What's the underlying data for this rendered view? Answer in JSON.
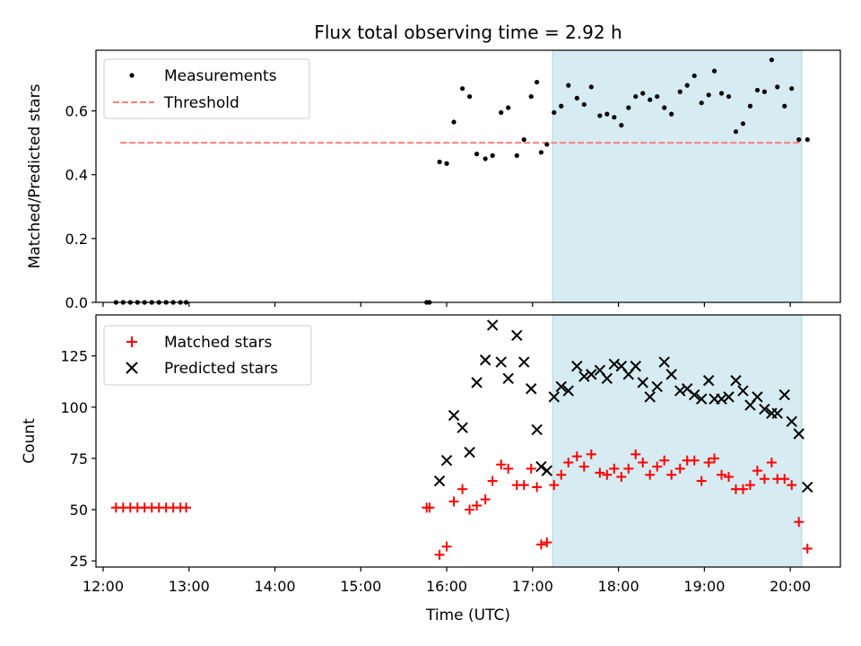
{
  "title": "Flux total observing time = 2.92 h",
  "chart_data": [
    {
      "type": "scatter",
      "ylabel": "Matched/Predicted stars",
      "xlabel": "",
      "xlim": [
        "11:55",
        "20:35"
      ],
      "ylim": [
        0,
        0.79
      ],
      "yticks": [
        0.0,
        0.2,
        0.4,
        0.6
      ],
      "ytick_labels": [
        "0.0",
        "0.2",
        "0.4",
        "0.6"
      ],
      "legend_position": "top-left",
      "shaded_interval": [
        "17:14",
        "20:08"
      ],
      "shaded_color": "#add8e6",
      "threshold": {
        "name": "Threshold",
        "value": 0.5,
        "x_start": "12:12",
        "x_end": "20:08",
        "color": "#ff7f7f"
      },
      "series": [
        {
          "name": "Measurements",
          "color": "#000000",
          "points": [
            [
              "12:09",
              0.0
            ],
            [
              "12:14",
              0.0
            ],
            [
              "12:19",
              0.0
            ],
            [
              "12:24",
              0.0
            ],
            [
              "12:29",
              0.0
            ],
            [
              "12:34",
              0.0
            ],
            [
              "12:39",
              0.0
            ],
            [
              "12:44",
              0.0
            ],
            [
              "12:49",
              0.0
            ],
            [
              "12:54",
              0.0
            ],
            [
              "12:58",
              0.0
            ],
            [
              "15:46",
              0.0
            ],
            [
              "15:48",
              0.0
            ],
            [
              "15:55",
              0.44
            ],
            [
              "16:00",
              0.435
            ],
            [
              "16:05",
              0.565
            ],
            [
              "16:11",
              0.67
            ],
            [
              "16:16",
              0.645
            ],
            [
              "16:21",
              0.465
            ],
            [
              "16:27",
              0.45
            ],
            [
              "16:32",
              0.46
            ],
            [
              "16:38",
              0.595
            ],
            [
              "16:43",
              0.61
            ],
            [
              "16:49",
              0.46
            ],
            [
              "16:54",
              0.51
            ],
            [
              "16:59",
              0.645
            ],
            [
              "17:03",
              0.69
            ],
            [
              "17:06",
              0.47
            ],
            [
              "17:10",
              0.495
            ],
            [
              "17:15",
              0.595
            ],
            [
              "17:20",
              0.615
            ],
            [
              "17:25",
              0.68
            ],
            [
              "17:31",
              0.64
            ],
            [
              "17:36",
              0.62
            ],
            [
              "17:41",
              0.675
            ],
            [
              "17:47",
              0.585
            ],
            [
              "17:52",
              0.59
            ],
            [
              "17:57",
              0.58
            ],
            [
              "18:02",
              0.555
            ],
            [
              "18:07",
              0.61
            ],
            [
              "18:12",
              0.645
            ],
            [
              "18:17",
              0.655
            ],
            [
              "18:22",
              0.635
            ],
            [
              "18:27",
              0.645
            ],
            [
              "18:32",
              0.61
            ],
            [
              "18:37",
              0.59
            ],
            [
              "18:43",
              0.66
            ],
            [
              "18:48",
              0.68
            ],
            [
              "18:53",
              0.71
            ],
            [
              "18:58",
              0.625
            ],
            [
              "19:03",
              0.65
            ],
            [
              "19:07",
              0.725
            ],
            [
              "19:12",
              0.655
            ],
            [
              "19:17",
              0.645
            ],
            [
              "19:22",
              0.535
            ],
            [
              "19:27",
              0.56
            ],
            [
              "19:32",
              0.615
            ],
            [
              "19:37",
              0.665
            ],
            [
              "19:42",
              0.66
            ],
            [
              "19:47",
              0.76
            ],
            [
              "19:51",
              0.675
            ],
            [
              "19:56",
              0.615
            ],
            [
              "20:01",
              0.67
            ],
            [
              "20:06",
              0.51
            ],
            [
              "20:12",
              0.51
            ]
          ]
        }
      ]
    },
    {
      "type": "scatter",
      "xlabel": "Time (UTC)",
      "ylabel": "Count",
      "xlim": [
        "11:55",
        "20:35"
      ],
      "ylim": [
        22,
        145
      ],
      "yticks": [
        25,
        50,
        75,
        100,
        125
      ],
      "ytick_labels": [
        "25",
        "50",
        "75",
        "100",
        "125"
      ],
      "xticks": [
        "12:00",
        "13:00",
        "14:00",
        "15:00",
        "16:00",
        "17:00",
        "18:00",
        "19:00",
        "20:00"
      ],
      "legend_position": "top-left",
      "shaded_interval": [
        "17:14",
        "20:08"
      ],
      "shaded_color": "#add8e6",
      "series": [
        {
          "name": "Matched stars",
          "color": "#ff0000",
          "marker": "plus",
          "points": [
            [
              "12:09",
              51
            ],
            [
              "12:14",
              51
            ],
            [
              "12:19",
              51
            ],
            [
              "12:24",
              51
            ],
            [
              "12:29",
              51
            ],
            [
              "12:34",
              51
            ],
            [
              "12:39",
              51
            ],
            [
              "12:44",
              51
            ],
            [
              "12:49",
              51
            ],
            [
              "12:54",
              51
            ],
            [
              "12:58",
              51
            ],
            [
              "15:46",
              51
            ],
            [
              "15:48",
              51
            ],
            [
              "15:55",
              28
            ],
            [
              "16:00",
              32
            ],
            [
              "16:05",
              54
            ],
            [
              "16:11",
              60
            ],
            [
              "16:16",
              50
            ],
            [
              "16:21",
              52
            ],
            [
              "16:27",
              55
            ],
            [
              "16:32",
              64
            ],
            [
              "16:38",
              72
            ],
            [
              "16:43",
              70
            ],
            [
              "16:49",
              62
            ],
            [
              "16:54",
              62
            ],
            [
              "16:59",
              70
            ],
            [
              "17:03",
              61
            ],
            [
              "17:06",
              33
            ],
            [
              "17:10",
              34
            ],
            [
              "17:15",
              62
            ],
            [
              "17:20",
              67
            ],
            [
              "17:25",
              73
            ],
            [
              "17:31",
              76
            ],
            [
              "17:36",
              71
            ],
            [
              "17:41",
              77
            ],
            [
              "17:47",
              68
            ],
            [
              "17:52",
              67
            ],
            [
              "17:57",
              70
            ],
            [
              "18:02",
              66
            ],
            [
              "18:07",
              70
            ],
            [
              "18:12",
              77
            ],
            [
              "18:17",
              73
            ],
            [
              "18:22",
              67
            ],
            [
              "18:27",
              71
            ],
            [
              "18:32",
              74
            ],
            [
              "18:37",
              67
            ],
            [
              "18:43",
              70
            ],
            [
              "18:48",
              74
            ],
            [
              "18:53",
              74
            ],
            [
              "18:58",
              64
            ],
            [
              "19:03",
              73
            ],
            [
              "19:07",
              75
            ],
            [
              "19:12",
              67
            ],
            [
              "19:17",
              66
            ],
            [
              "19:22",
              60
            ],
            [
              "19:27",
              60
            ],
            [
              "19:32",
              62
            ],
            [
              "19:37",
              69
            ],
            [
              "19:42",
              65
            ],
            [
              "19:47",
              73
            ],
            [
              "19:51",
              65
            ],
            [
              "19:56",
              65
            ],
            [
              "20:01",
              62
            ],
            [
              "20:06",
              44
            ],
            [
              "20:12",
              31
            ]
          ]
        },
        {
          "name": "Predicted stars",
          "color": "#000000",
          "marker": "x",
          "points": [
            [
              "15:55",
              64
            ],
            [
              "16:00",
              74
            ],
            [
              "16:05",
              96
            ],
            [
              "16:11",
              90
            ],
            [
              "16:16",
              78
            ],
            [
              "16:21",
              112
            ],
            [
              "16:27",
              123
            ],
            [
              "16:32",
              140
            ],
            [
              "16:38",
              122
            ],
            [
              "16:43",
              114
            ],
            [
              "16:49",
              135
            ],
            [
              "16:54",
              122
            ],
            [
              "16:59",
              109
            ],
            [
              "17:03",
              89
            ],
            [
              "17:06",
              71
            ],
            [
              "17:10",
              69
            ],
            [
              "17:15",
              105
            ],
            [
              "17:20",
              110
            ],
            [
              "17:25",
              108
            ],
            [
              "17:31",
              120
            ],
            [
              "17:36",
              115
            ],
            [
              "17:41",
              116
            ],
            [
              "17:47",
              118
            ],
            [
              "17:52",
              114
            ],
            [
              "17:57",
              121
            ],
            [
              "18:02",
              120
            ],
            [
              "18:07",
              116
            ],
            [
              "18:12",
              120
            ],
            [
              "18:17",
              112
            ],
            [
              "18:22",
              105
            ],
            [
              "18:27",
              110
            ],
            [
              "18:32",
              122
            ],
            [
              "18:37",
              116
            ],
            [
              "18:43",
              108
            ],
            [
              "18:48",
              109
            ],
            [
              "18:53",
              106
            ],
            [
              "18:58",
              104
            ],
            [
              "19:03",
              113
            ],
            [
              "19:07",
              104
            ],
            [
              "19:12",
              104
            ],
            [
              "19:17",
              105
            ],
            [
              "19:22",
              113
            ],
            [
              "19:27",
              108
            ],
            [
              "19:32",
              101
            ],
            [
              "19:37",
              105
            ],
            [
              "19:42",
              99
            ],
            [
              "19:47",
              97
            ],
            [
              "19:51",
              97
            ],
            [
              "19:56",
              106
            ],
            [
              "20:01",
              93
            ],
            [
              "20:06",
              87
            ],
            [
              "20:12",
              61
            ]
          ]
        }
      ]
    }
  ]
}
